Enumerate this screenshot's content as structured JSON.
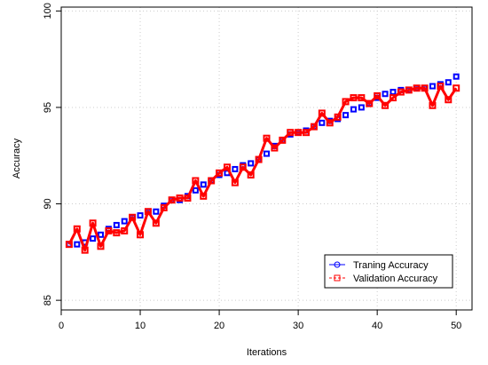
{
  "chart_data": {
    "type": "line",
    "title": "",
    "xlabel": "Iterations",
    "ylabel": "Accuracy",
    "xlim": [
      0,
      52
    ],
    "ylim": [
      84.5,
      100.2
    ],
    "xticks": [
      0,
      10,
      20,
      30,
      40,
      50
    ],
    "yticks": [
      85,
      90,
      95,
      100
    ],
    "grid": true,
    "legend_position": "bottom-right",
    "series": [
      {
        "name": "Traning Accuracy",
        "color": "#0000ff",
        "marker": "circle",
        "linestyle": "solid",
        "x": [
          1,
          2,
          3,
          4,
          5,
          6,
          7,
          8,
          9,
          10,
          11,
          12,
          13,
          14,
          15,
          16,
          17,
          18,
          19,
          20,
          21,
          22,
          23,
          24,
          25,
          26,
          27,
          28,
          29,
          30,
          31,
          32,
          33,
          34,
          35,
          36,
          37,
          38,
          39,
          40,
          41,
          42,
          43,
          44,
          45,
          46,
          47,
          48,
          49,
          50
        ],
        "values": [
          87.9,
          87.9,
          88.0,
          88.2,
          88.4,
          88.7,
          88.9,
          89.1,
          89.3,
          89.4,
          89.6,
          89.6,
          89.9,
          90.2,
          90.2,
          90.4,
          90.7,
          91.0,
          91.2,
          91.5,
          91.6,
          91.8,
          92.0,
          92.1,
          92.3,
          92.6,
          93.0,
          93.3,
          93.6,
          93.7,
          93.8,
          94.0,
          94.2,
          94.3,
          94.4,
          94.6,
          94.9,
          95.0,
          95.2,
          95.5,
          95.7,
          95.8,
          95.9,
          95.9,
          96.0,
          96.0,
          96.1,
          96.2,
          96.3,
          96.6
        ]
      },
      {
        "name": "Validation Accuracy",
        "color": "#ff0000",
        "marker": "square",
        "linestyle": "dashed",
        "x": [
          1,
          2,
          3,
          4,
          5,
          6,
          7,
          8,
          9,
          10,
          11,
          12,
          13,
          14,
          15,
          16,
          17,
          18,
          19,
          20,
          21,
          22,
          23,
          24,
          25,
          26,
          27,
          28,
          29,
          30,
          31,
          32,
          33,
          34,
          35,
          36,
          37,
          38,
          39,
          40,
          41,
          42,
          43,
          44,
          45,
          46,
          47,
          48,
          49,
          50
        ],
        "values": [
          87.9,
          88.7,
          87.6,
          89.0,
          87.8,
          88.6,
          88.5,
          88.6,
          89.3,
          88.4,
          89.6,
          89.0,
          89.8,
          90.2,
          90.3,
          90.3,
          91.2,
          90.4,
          91.2,
          91.6,
          91.9,
          91.1,
          91.9,
          91.5,
          92.3,
          93.4,
          92.9,
          93.3,
          93.7,
          93.7,
          93.7,
          94.0,
          94.7,
          94.2,
          94.5,
          95.3,
          95.5,
          95.5,
          95.2,
          95.6,
          95.1,
          95.5,
          95.8,
          95.9,
          96.0,
          96.0,
          95.1,
          96.1,
          95.4,
          96.0
        ]
      }
    ]
  }
}
